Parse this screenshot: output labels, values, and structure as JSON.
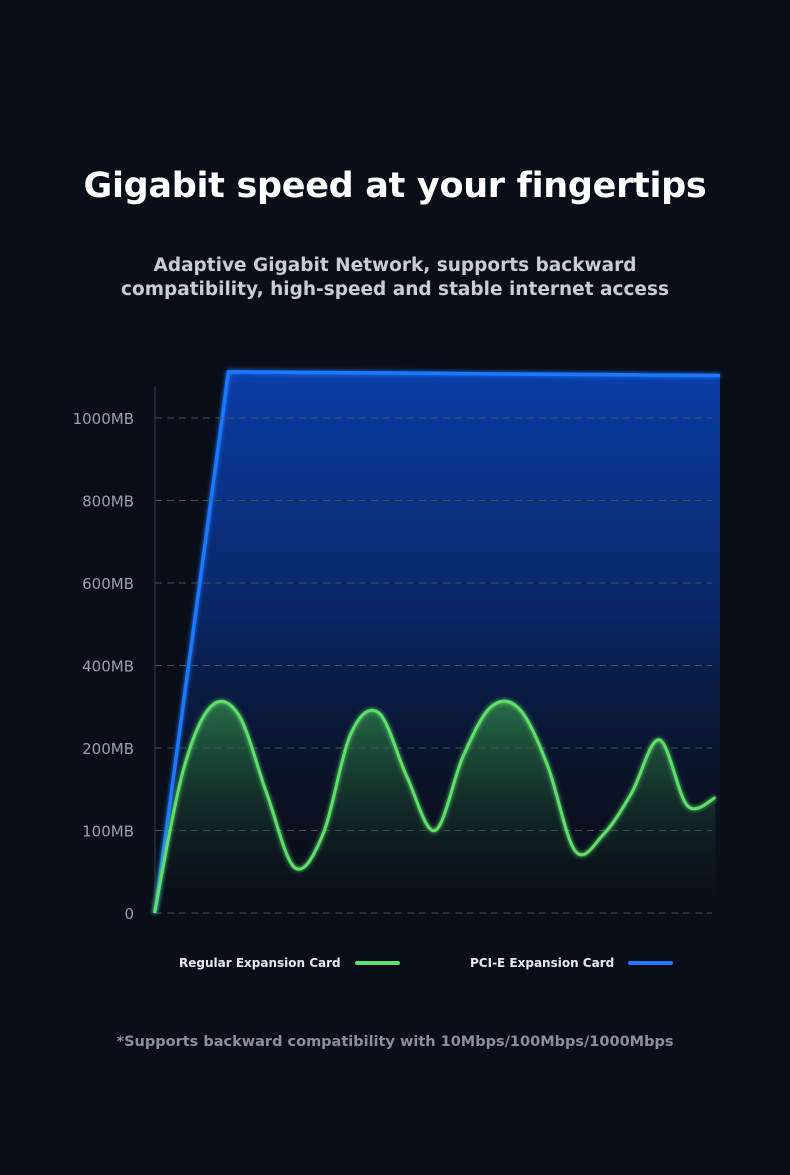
{
  "title": "Gigabit speed at your fingertips",
  "subtitle": "Adaptive Gigabit Network, supports backward compatibility, high-speed and stable internet access",
  "footnote": "*Supports backward compatibility with 10Mbps/100Mbps/1000Mbps",
  "colors": {
    "background": "#0a0e18",
    "regular": "#5ee06a",
    "pcie": "#1f78ff",
    "grid": "#4a4f5c"
  },
  "chart_data": {
    "type": "area",
    "y_ticks": [
      0,
      100,
      200,
      400,
      600,
      800,
      1000
    ],
    "y_tick_labels": [
      "0",
      "100MB",
      "200MB",
      "400MB",
      "600MB",
      "800MB",
      "1000MB"
    ],
    "ylim": [
      0,
      1100
    ],
    "xlim": [
      0,
      100
    ],
    "grid": true,
    "legend_position": "bottom",
    "series": [
      {
        "name": "Regular Expansion Card",
        "x": [
          0,
          5,
          10,
          15,
          20,
          25,
          30,
          35,
          40,
          45,
          50,
          55,
          60,
          65,
          70,
          75,
          80,
          85,
          90,
          95,
          100
        ],
        "values": [
          0,
          170,
          300,
          280,
          145,
          55,
          95,
          235,
          285,
          165,
          100,
          190,
          300,
          295,
          180,
          75,
          95,
          145,
          220,
          130,
          140
        ]
      },
      {
        "name": "PCI-E Expansion Card",
        "x": [
          0,
          13,
          100
        ],
        "values": [
          0,
          1112,
          1103
        ]
      }
    ]
  }
}
